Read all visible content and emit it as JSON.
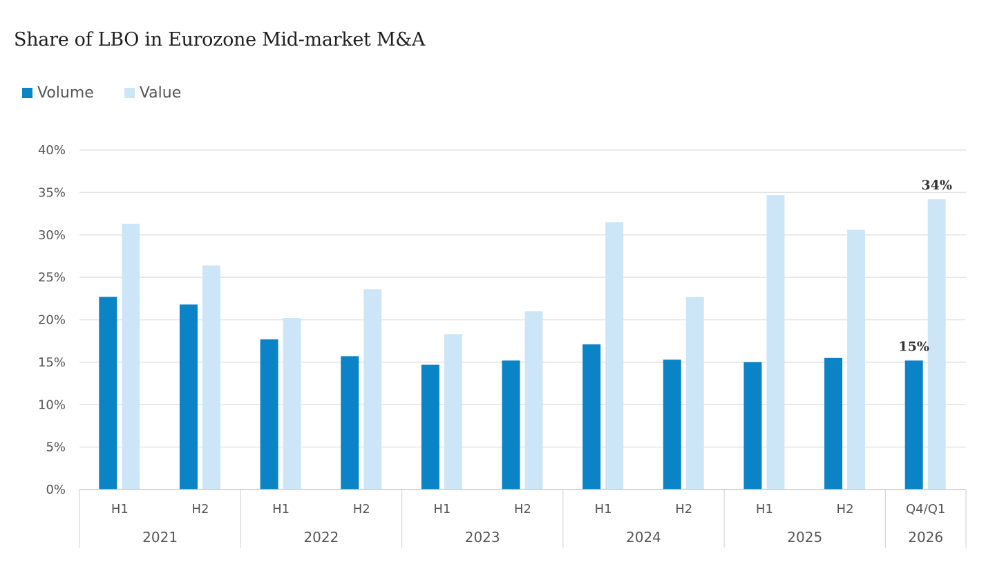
{
  "chart_data": {
    "type": "bar",
    "title": "Share of LBO in Eurozone Mid-market M&A",
    "categories": [
      "H1",
      "H2",
      "H1",
      "H2",
      "H1",
      "H2",
      "H1",
      "H2",
      "H1",
      "H2",
      "Q4/Q1"
    ],
    "groups": [
      {
        "label": "2021",
        "span": 2
      },
      {
        "label": "2022",
        "span": 2
      },
      {
        "label": "2023",
        "span": 2
      },
      {
        "label": "2024",
        "span": 2
      },
      {
        "label": "2025",
        "span": 2
      },
      {
        "label": "2026",
        "span": 1
      }
    ],
    "series": [
      {
        "name": "Volume",
        "color": "#0a84c6",
        "values": [
          22.7,
          21.8,
          17.7,
          15.7,
          14.7,
          15.2,
          17.1,
          15.3,
          15.0,
          15.5,
          15.2
        ]
      },
      {
        "name": "Value",
        "color": "#cde6f7",
        "values": [
          31.3,
          26.4,
          20.2,
          23.6,
          18.3,
          21.0,
          31.5,
          22.7,
          34.7,
          30.6,
          34.2
        ]
      }
    ],
    "data_labels": [
      {
        "series": "Volume",
        "index": 10,
        "text": "15%"
      },
      {
        "series": "Value",
        "index": 10,
        "text": "34%"
      }
    ],
    "ylim": [
      0,
      40
    ],
    "yticks": [
      0,
      5,
      10,
      15,
      20,
      25,
      30,
      35,
      40
    ],
    "ytick_labels": [
      "0%",
      "5%",
      "10%",
      "15%",
      "20%",
      "25%",
      "30%",
      "35%",
      "40%"
    ],
    "grid": true,
    "legend": "top-left"
  }
}
